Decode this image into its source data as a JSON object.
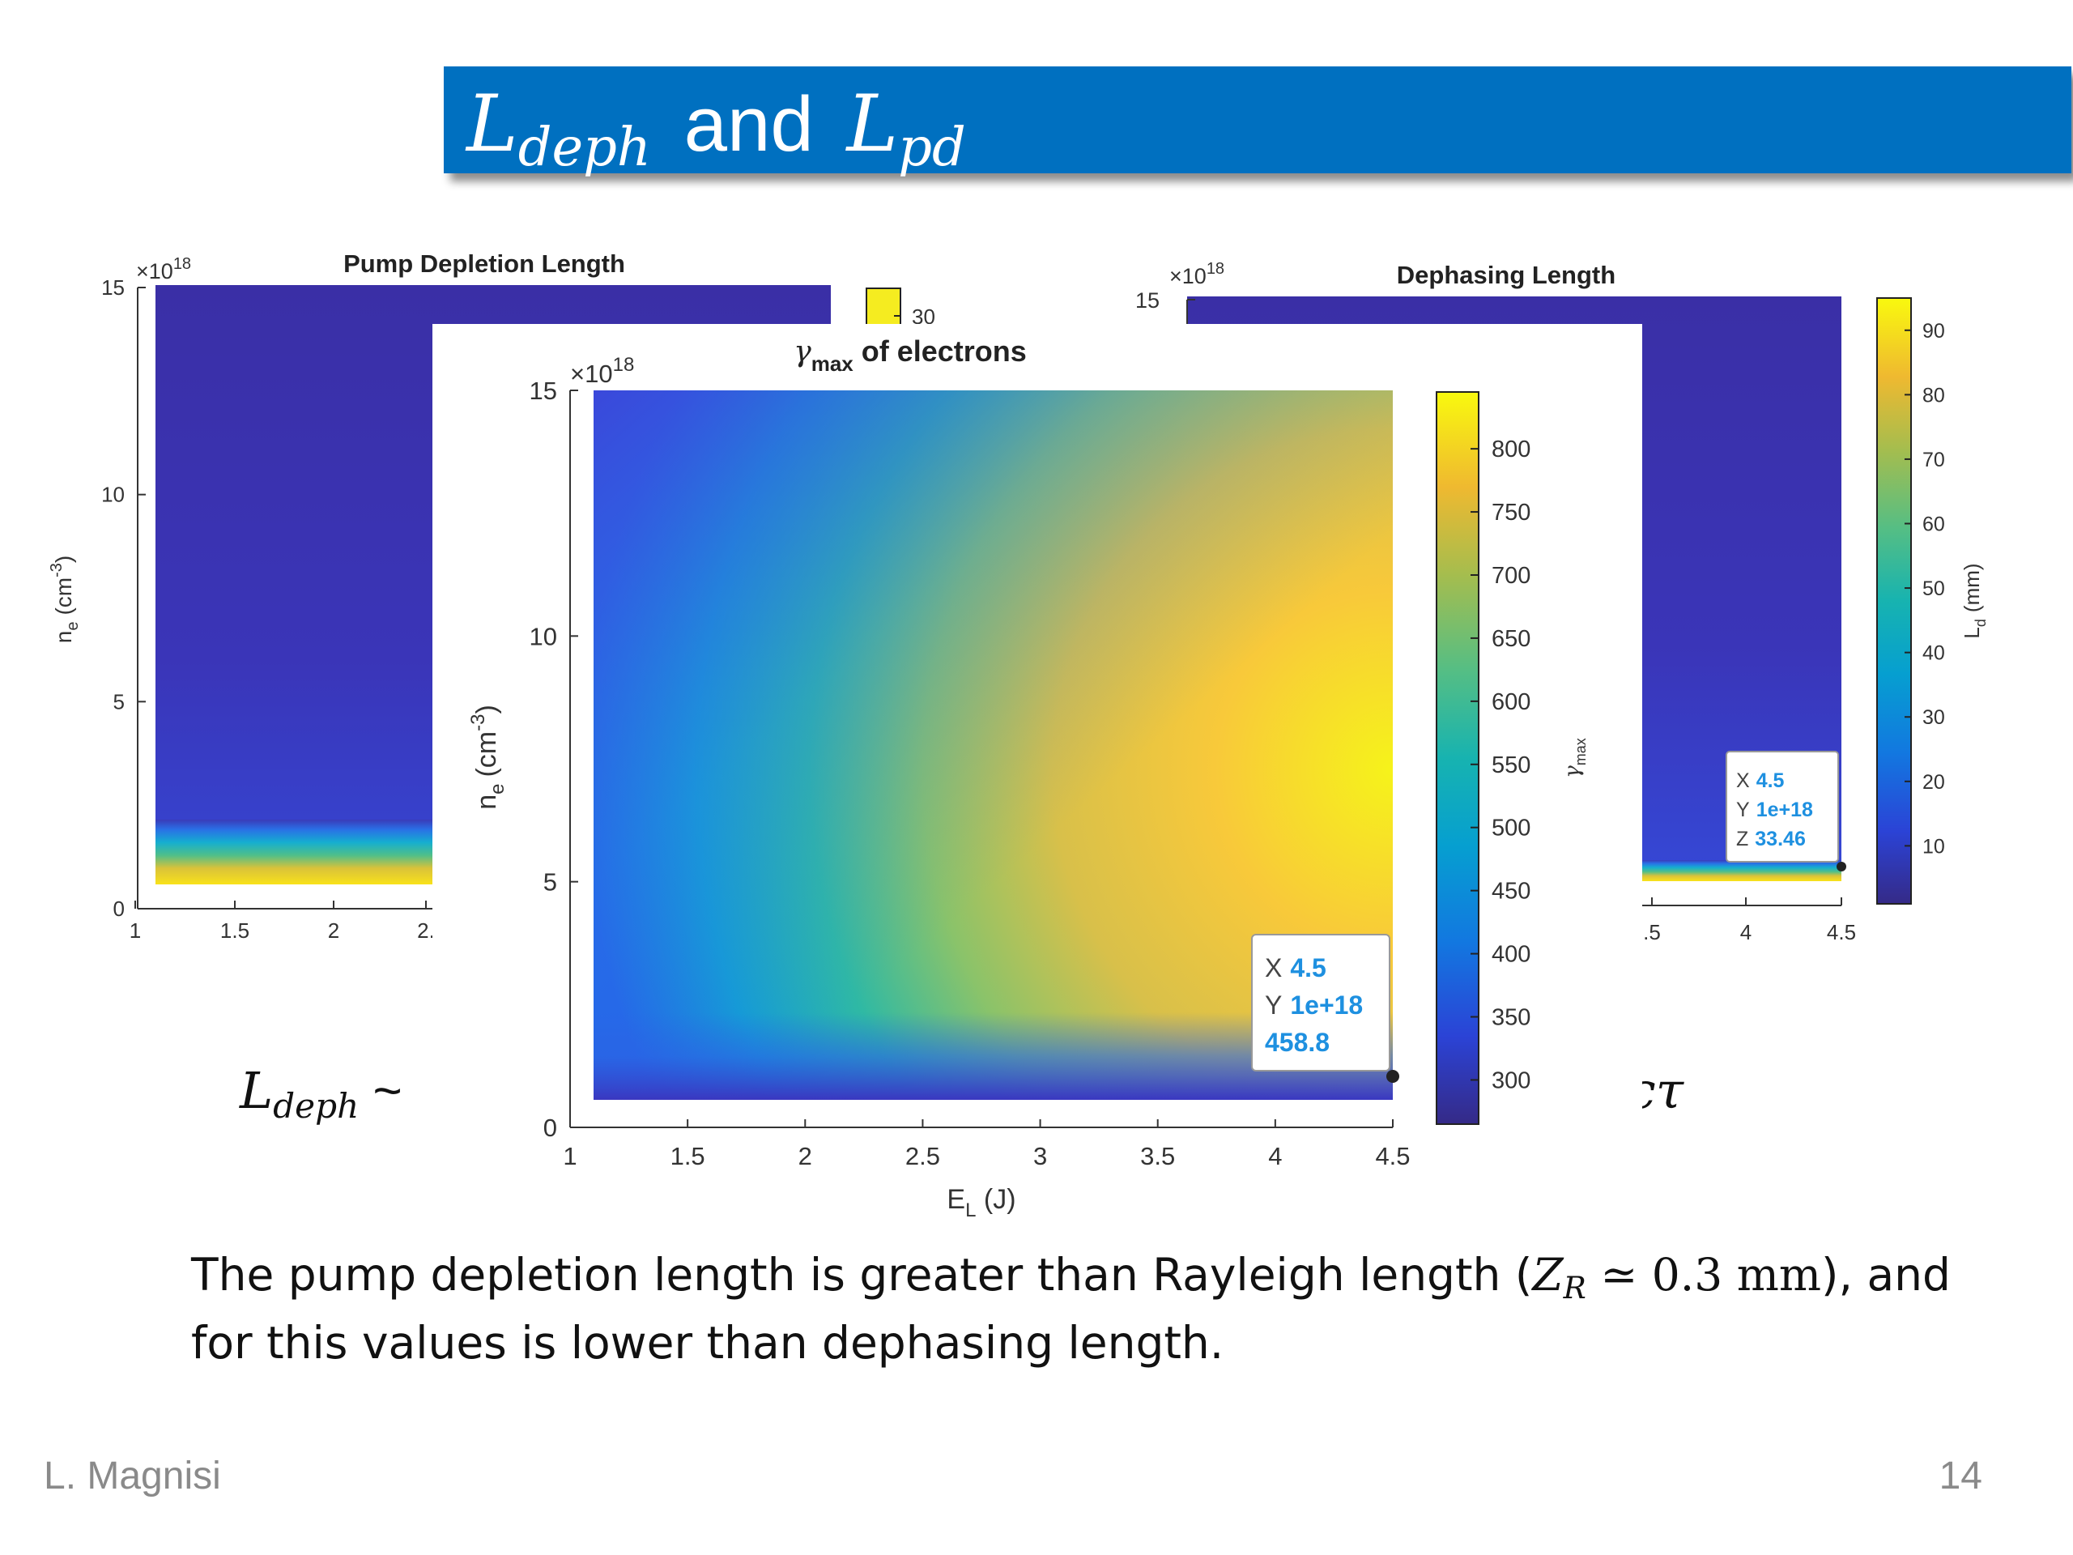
{
  "slide": {
    "title_symbol_a": "L",
    "title_sub_a": "deph",
    "title_and": "and",
    "title_symbol_b": "L",
    "title_sub_b": "pd",
    "formula_left_symbol": "L",
    "formula_left_sub": "deph",
    "formula_left_rest": "~",
    "formula_right_tail": "cτ",
    "caption_part1": "The pump depletion length is greater than Rayleigh length (",
    "caption_math": "Z",
    "caption_math_sub": "R",
    "caption_math_rest": " ≃ 0.3 mm",
    "caption_part2": "), and for this values is lower than dephasing length.",
    "footer_author": "L. Magnisi",
    "page_number": "14"
  },
  "chart_data": [
    {
      "id": "pump-depletion",
      "type": "heatmap",
      "title": "Pump Depletion Length",
      "xlabel": "",
      "ylabel": "n_e (cm^-3)",
      "ylabel_main": "n",
      "ylabel_sub": "e",
      "ylabel_unit": "(cm",
      "ylabel_exp": "-3",
      "ylabel_close": ")",
      "y_multiplier": "×10",
      "y_multiplier_exp": "18",
      "x_ticks": [
        "1",
        "1.5",
        "2",
        "2."
      ],
      "y_ticks": [
        "0",
        "5",
        "10",
        "15"
      ],
      "xlim": [
        1,
        4.5
      ],
      "ylim": [
        0,
        15
      ],
      "colorbar_ticks": [
        "30"
      ],
      "colorscale": "parula"
    },
    {
      "id": "dephasing",
      "type": "heatmap",
      "title": "Dephasing Length",
      "colorbar_label": "L_d (mm)",
      "colorbar_label_main": "L",
      "colorbar_label_sub": "d",
      "colorbar_label_unit": "(mm)",
      "y_multiplier": "×10",
      "y_multiplier_exp": "18",
      "x_ticks": [
        ".5",
        "4",
        "4.5"
      ],
      "y_ticks": [
        "15"
      ],
      "xlim": [
        1,
        4.5
      ],
      "ylim": [
        0,
        15
      ],
      "colorbar_ticks": [
        "10",
        "20",
        "30",
        "40",
        "50",
        "60",
        "70",
        "80",
        "90"
      ],
      "clim": [
        1,
        95
      ],
      "colorscale": "parula",
      "datatip": {
        "x_label": "X",
        "x": "4.5",
        "y_label": "Y",
        "y": "1e+18",
        "z_label": "Z",
        "z": "33.46"
      }
    },
    {
      "id": "gamma-max",
      "type": "heatmap",
      "title_symbol": "γ",
      "title_sub": "max",
      "title_rest": " of electrons",
      "xlabel": "E_L (J)",
      "xlabel_main": "E",
      "xlabel_sub": "L",
      "xlabel_unit": " (J)",
      "ylabel": "n_e (cm^-3)",
      "ylabel_main": "n",
      "ylabel_sub": "e",
      "ylabel_unit": "(cm",
      "ylabel_exp": "-3",
      "ylabel_close": ")",
      "y_multiplier": "×10",
      "y_multiplier_exp": "18",
      "colorbar_label": "γ_max",
      "colorbar_label_main": "γ",
      "colorbar_label_sub": "max",
      "x_ticks": [
        "1",
        "1.5",
        "2",
        "2.5",
        "3",
        "3.5",
        "4",
        "4.5"
      ],
      "y_ticks": [
        "0",
        "5",
        "10",
        "15"
      ],
      "xlim": [
        1,
        4.5
      ],
      "ylim": [
        0,
        15
      ],
      "colorbar_ticks": [
        "300",
        "350",
        "400",
        "450",
        "500",
        "550",
        "600",
        "650",
        "700",
        "750",
        "800"
      ],
      "clim": [
        265,
        845
      ],
      "colorscale": "parula",
      "datatip": {
        "x_label": "X",
        "x": "4.5",
        "y_label": "Y",
        "y": "1e+18",
        "z": "458.8"
      }
    }
  ]
}
